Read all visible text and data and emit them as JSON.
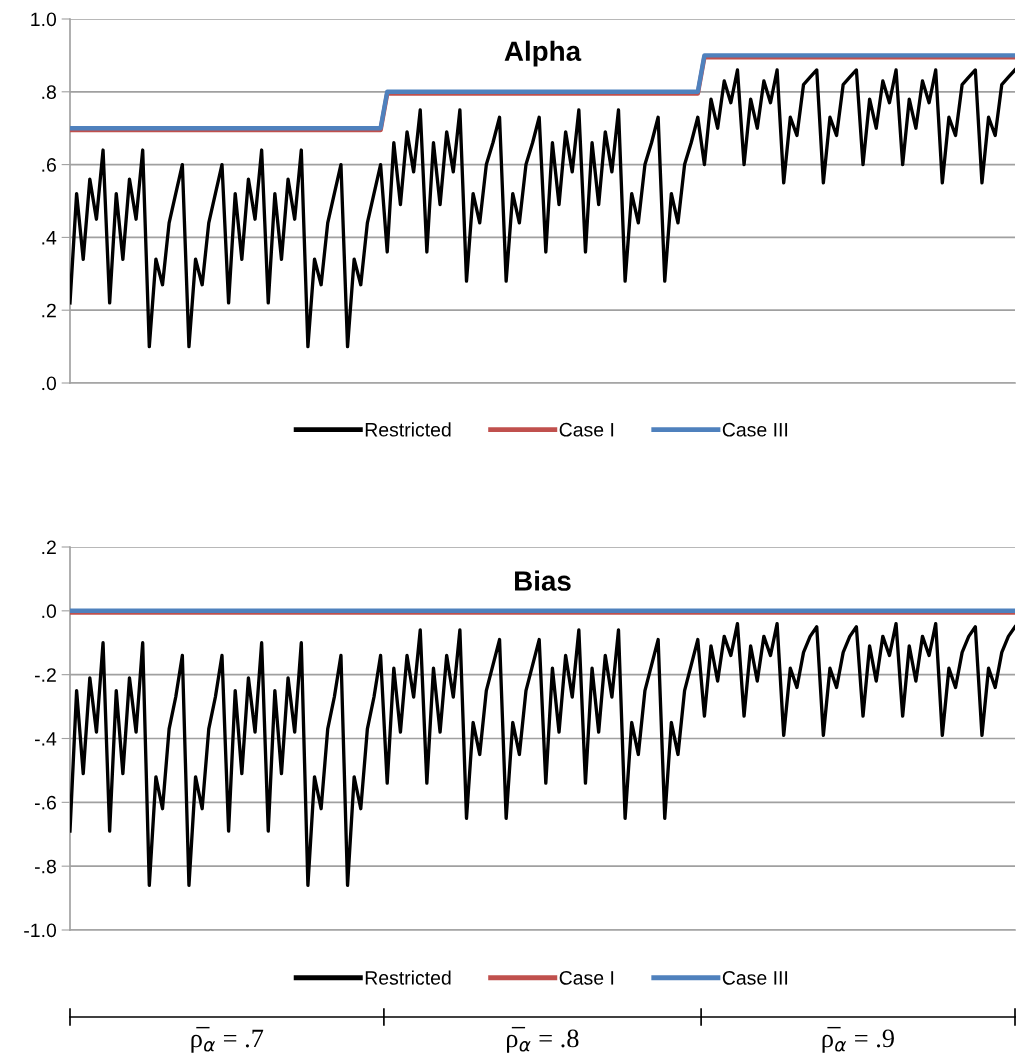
{
  "chart_data": [
    {
      "type": "line",
      "title": "Alpha",
      "categories": [
        null,
        null,
        null,
        null,
        null,
        null,
        null,
        null,
        null,
        null,
        null,
        null,
        null,
        null,
        null,
        null,
        null,
        null,
        null,
        null,
        null,
        null,
        null,
        null,
        null,
        null,
        null,
        null,
        null,
        null,
        null,
        null,
        null,
        null,
        null,
        null,
        null,
        null,
        null,
        null,
        null,
        null,
        null,
        null,
        null,
        null,
        null,
        null,
        null,
        null,
        null,
        null,
        null,
        null,
        null,
        null,
        null,
        null,
        null,
        null,
        null,
        null,
        null,
        null,
        null,
        null,
        null,
        null,
        null,
        null,
        null,
        null,
        null,
        null,
        null,
        null,
        null,
        null,
        null,
        null,
        null,
        null,
        null,
        null,
        null,
        null,
        null,
        null,
        null,
        null,
        null,
        null,
        null,
        null,
        null,
        null,
        null,
        null,
        null,
        null,
        null,
        null,
        null,
        null,
        null,
        null,
        null,
        null,
        null,
        null,
        null,
        null,
        null,
        null,
        null,
        null,
        null,
        null,
        null,
        null,
        null,
        null,
        null,
        null,
        null,
        null,
        null,
        null,
        null,
        null,
        null,
        null,
        null,
        null,
        null,
        null,
        null,
        null,
        null,
        null,
        null,
        null,
        null,
        null
      ],
      "series": [
        {
          "name": "Restricted",
          "color": "#000000",
          "values": [
            0.22,
            0.52,
            0.34,
            0.56,
            0.45,
            0.64,
            0.22,
            0.52,
            0.34,
            0.56,
            0.45,
            0.64,
            0.1,
            0.34,
            0.27,
            0.44,
            0.52,
            0.6,
            0.1,
            0.34,
            0.27,
            0.44,
            0.52,
            0.6,
            0.22,
            0.52,
            0.34,
            0.56,
            0.45,
            0.64,
            0.22,
            0.52,
            0.34,
            0.56,
            0.45,
            0.64,
            0.1,
            0.34,
            0.27,
            0.44,
            0.52,
            0.6,
            0.1,
            0.34,
            0.27,
            0.44,
            0.52,
            0.6,
            0.36,
            0.66,
            0.49,
            0.69,
            0.58,
            0.75,
            0.36,
            0.66,
            0.49,
            0.69,
            0.58,
            0.75,
            0.28,
            0.52,
            0.44,
            0.6,
            0.66,
            0.73,
            0.28,
            0.52,
            0.44,
            0.6,
            0.66,
            0.73,
            0.36,
            0.66,
            0.49,
            0.69,
            0.58,
            0.75,
            0.36,
            0.66,
            0.49,
            0.69,
            0.58,
            0.75,
            0.28,
            0.52,
            0.44,
            0.6,
            0.66,
            0.73,
            0.28,
            0.52,
            0.44,
            0.6,
            0.66,
            0.73,
            0.6,
            0.78,
            0.7,
            0.83,
            0.77,
            0.86,
            0.6,
            0.78,
            0.7,
            0.83,
            0.77,
            0.86,
            0.55,
            0.73,
            0.68,
            0.82,
            0.84,
            0.86,
            0.55,
            0.73,
            0.68,
            0.82,
            0.84,
            0.86,
            0.6,
            0.78,
            0.7,
            0.83,
            0.77,
            0.86,
            0.6,
            0.78,
            0.7,
            0.83,
            0.77,
            0.86,
            0.55,
            0.73,
            0.68,
            0.82,
            0.84,
            0.86,
            0.55,
            0.73,
            0.68,
            0.82,
            0.84,
            0.86
          ]
        },
        {
          "name": "Case I",
          "color": "#c0504d",
          "values": [
            0.695,
            0.695,
            0.695,
            0.695,
            0.695,
            0.695,
            0.695,
            0.695,
            0.695,
            0.695,
            0.695,
            0.695,
            0.695,
            0.695,
            0.695,
            0.695,
            0.695,
            0.695,
            0.695,
            0.695,
            0.695,
            0.695,
            0.695,
            0.695,
            0.695,
            0.695,
            0.695,
            0.695,
            0.695,
            0.695,
            0.695,
            0.695,
            0.695,
            0.695,
            0.695,
            0.695,
            0.695,
            0.695,
            0.695,
            0.695,
            0.695,
            0.695,
            0.695,
            0.695,
            0.695,
            0.695,
            0.695,
            0.695,
            0.795,
            0.795,
            0.795,
            0.795,
            0.795,
            0.795,
            0.795,
            0.795,
            0.795,
            0.795,
            0.795,
            0.795,
            0.795,
            0.795,
            0.795,
            0.795,
            0.795,
            0.795,
            0.795,
            0.795,
            0.795,
            0.795,
            0.795,
            0.795,
            0.795,
            0.795,
            0.795,
            0.795,
            0.795,
            0.795,
            0.795,
            0.795,
            0.795,
            0.795,
            0.795,
            0.795,
            0.795,
            0.795,
            0.795,
            0.795,
            0.795,
            0.795,
            0.795,
            0.795,
            0.795,
            0.795,
            0.795,
            0.795,
            0.895,
            0.895,
            0.895,
            0.895,
            0.895,
            0.895,
            0.895,
            0.895,
            0.895,
            0.895,
            0.895,
            0.895,
            0.895,
            0.895,
            0.895,
            0.895,
            0.895,
            0.895,
            0.895,
            0.895,
            0.895,
            0.895,
            0.895,
            0.895,
            0.895,
            0.895,
            0.895,
            0.895,
            0.895,
            0.895,
            0.895,
            0.895,
            0.895,
            0.895,
            0.895,
            0.895,
            0.895,
            0.895,
            0.895,
            0.895,
            0.895,
            0.895,
            0.895,
            0.895,
            0.895,
            0.895,
            0.895,
            0.895
          ]
        },
        {
          "name": "Case III",
          "color": "#4f81bd",
          "values": [
            0.7,
            0.7,
            0.7,
            0.7,
            0.7,
            0.7,
            0.7,
            0.7,
            0.7,
            0.7,
            0.7,
            0.7,
            0.7,
            0.7,
            0.7,
            0.7,
            0.7,
            0.7,
            0.7,
            0.7,
            0.7,
            0.7,
            0.7,
            0.7,
            0.7,
            0.7,
            0.7,
            0.7,
            0.7,
            0.7,
            0.7,
            0.7,
            0.7,
            0.7,
            0.7,
            0.7,
            0.7,
            0.7,
            0.7,
            0.7,
            0.7,
            0.7,
            0.7,
            0.7,
            0.7,
            0.7,
            0.7,
            0.7,
            0.8,
            0.8,
            0.8,
            0.8,
            0.8,
            0.8,
            0.8,
            0.8,
            0.8,
            0.8,
            0.8,
            0.8,
            0.8,
            0.8,
            0.8,
            0.8,
            0.8,
            0.8,
            0.8,
            0.8,
            0.8,
            0.8,
            0.8,
            0.8,
            0.8,
            0.8,
            0.8,
            0.8,
            0.8,
            0.8,
            0.8,
            0.8,
            0.8,
            0.8,
            0.8,
            0.8,
            0.8,
            0.8,
            0.8,
            0.8,
            0.8,
            0.8,
            0.8,
            0.8,
            0.8,
            0.8,
            0.8,
            0.8,
            0.9,
            0.9,
            0.9,
            0.9,
            0.9,
            0.9,
            0.9,
            0.9,
            0.9,
            0.9,
            0.9,
            0.9,
            0.9,
            0.9,
            0.9,
            0.9,
            0.9,
            0.9,
            0.9,
            0.9,
            0.9,
            0.9,
            0.9,
            0.9,
            0.9,
            0.9,
            0.9,
            0.9,
            0.9,
            0.9,
            0.9,
            0.9,
            0.9,
            0.9,
            0.9,
            0.9,
            0.9,
            0.9,
            0.9,
            0.9,
            0.9,
            0.9,
            0.9,
            0.9,
            0.9,
            0.9,
            0.9,
            0.9
          ]
        }
      ],
      "ylim": [
        0,
        1.0
      ],
      "yticks": [
        {
          "value": 0,
          "label": ".0"
        },
        {
          "value": 0.2,
          "label": ".2"
        },
        {
          "value": 0.4,
          "label": ".4"
        },
        {
          "value": 0.6,
          "label": ".6"
        },
        {
          "value": 0.8,
          "label": ".8"
        },
        {
          "value": 1.0,
          "label": "1.0"
        }
      ],
      "grid": "y",
      "legend": "bottom",
      "tick_labels": "y",
      "line_style": "solid"
    },
    {
      "type": "line",
      "title": "Bias",
      "categories": [
        null,
        null,
        null,
        null,
        null,
        null,
        null,
        null,
        null,
        null,
        null,
        null,
        null,
        null,
        null,
        null,
        null,
        null,
        null,
        null,
        null,
        null,
        null,
        null,
        null,
        null,
        null,
        null,
        null,
        null,
        null,
        null,
        null,
        null,
        null,
        null,
        null,
        null,
        null,
        null,
        null,
        null,
        null,
        null,
        null,
        null,
        null,
        null,
        null,
        null,
        null,
        null,
        null,
        null,
        null,
        null,
        null,
        null,
        null,
        null,
        null,
        null,
        null,
        null,
        null,
        null,
        null,
        null,
        null,
        null,
        null,
        null,
        null,
        null,
        null,
        null,
        null,
        null,
        null,
        null,
        null,
        null,
        null,
        null,
        null,
        null,
        null,
        null,
        null,
        null,
        null,
        null,
        null,
        null,
        null,
        null,
        null,
        null,
        null,
        null,
        null,
        null,
        null,
        null,
        null,
        null,
        null,
        null,
        null,
        null,
        null,
        null,
        null,
        null,
        null,
        null,
        null,
        null,
        null,
        null,
        null,
        null,
        null,
        null,
        null,
        null,
        null,
        null,
        null,
        null,
        null,
        null,
        null,
        null,
        null,
        null,
        null,
        null,
        null,
        null,
        null,
        null,
        null,
        null
      ],
      "series": [
        {
          "name": "Restricted",
          "color": "#000000",
          "values": [
            -0.69,
            -0.25,
            -0.51,
            -0.21,
            -0.38,
            -0.1,
            -0.69,
            -0.25,
            -0.51,
            -0.21,
            -0.38,
            -0.1,
            -0.86,
            -0.52,
            -0.62,
            -0.37,
            -0.27,
            -0.14,
            -0.86,
            -0.52,
            -0.62,
            -0.37,
            -0.27,
            -0.14,
            -0.69,
            -0.25,
            -0.51,
            -0.21,
            -0.38,
            -0.1,
            -0.69,
            -0.25,
            -0.51,
            -0.21,
            -0.38,
            -0.1,
            -0.86,
            -0.52,
            -0.62,
            -0.37,
            -0.27,
            -0.14,
            -0.86,
            -0.52,
            -0.62,
            -0.37,
            -0.27,
            -0.14,
            -0.54,
            -0.18,
            -0.38,
            -0.14,
            -0.27,
            -0.06,
            -0.54,
            -0.18,
            -0.38,
            -0.14,
            -0.27,
            -0.06,
            -0.65,
            -0.35,
            -0.45,
            -0.25,
            -0.17,
            -0.09,
            -0.65,
            -0.35,
            -0.45,
            -0.25,
            -0.17,
            -0.09,
            -0.54,
            -0.18,
            -0.38,
            -0.14,
            -0.27,
            -0.06,
            -0.54,
            -0.18,
            -0.38,
            -0.14,
            -0.27,
            -0.06,
            -0.65,
            -0.35,
            -0.45,
            -0.25,
            -0.17,
            -0.09,
            -0.65,
            -0.35,
            -0.45,
            -0.25,
            -0.17,
            -0.09,
            -0.33,
            -0.11,
            -0.22,
            -0.08,
            -0.14,
            -0.04,
            -0.33,
            -0.11,
            -0.22,
            -0.08,
            -0.14,
            -0.04,
            -0.39,
            -0.18,
            -0.24,
            -0.13,
            -0.08,
            -0.05,
            -0.39,
            -0.18,
            -0.24,
            -0.13,
            -0.08,
            -0.05,
            -0.33,
            -0.11,
            -0.22,
            -0.08,
            -0.14,
            -0.04,
            -0.33,
            -0.11,
            -0.22,
            -0.08,
            -0.14,
            -0.04,
            -0.39,
            -0.18,
            -0.24,
            -0.13,
            -0.08,
            -0.05,
            -0.39,
            -0.18,
            -0.24,
            -0.13,
            -0.08,
            -0.05
          ]
        },
        {
          "name": "Case I",
          "color": "#c0504d",
          "values": [
            -0.005,
            -0.005,
            -0.005,
            -0.005,
            -0.005,
            -0.005,
            -0.005,
            -0.005,
            -0.005,
            -0.005,
            -0.005,
            -0.005,
            -0.005,
            -0.005,
            -0.005,
            -0.005,
            -0.005,
            -0.005,
            -0.005,
            -0.005,
            -0.005,
            -0.005,
            -0.005,
            -0.005,
            -0.005,
            -0.005,
            -0.005,
            -0.005,
            -0.005,
            -0.005,
            -0.005,
            -0.005,
            -0.005,
            -0.005,
            -0.005,
            -0.005,
            -0.005,
            -0.005,
            -0.005,
            -0.005,
            -0.005,
            -0.005,
            -0.005,
            -0.005,
            -0.005,
            -0.005,
            -0.005,
            -0.005,
            -0.005,
            -0.005,
            -0.005,
            -0.005,
            -0.005,
            -0.005,
            -0.005,
            -0.005,
            -0.005,
            -0.005,
            -0.005,
            -0.005,
            -0.005,
            -0.005,
            -0.005,
            -0.005,
            -0.005,
            -0.005,
            -0.005,
            -0.005,
            -0.005,
            -0.005,
            -0.005,
            -0.005,
            -0.005,
            -0.005,
            -0.005,
            -0.005,
            -0.005,
            -0.005,
            -0.005,
            -0.005,
            -0.005,
            -0.005,
            -0.005,
            -0.005,
            -0.005,
            -0.005,
            -0.005,
            -0.005,
            -0.005,
            -0.005,
            -0.005,
            -0.005,
            -0.005,
            -0.005,
            -0.005,
            -0.005,
            -0.005,
            -0.005,
            -0.005,
            -0.005,
            -0.005,
            -0.005,
            -0.005,
            -0.005,
            -0.005,
            -0.005,
            -0.005,
            -0.005,
            -0.005,
            -0.005,
            -0.005,
            -0.005,
            -0.005,
            -0.005,
            -0.005,
            -0.005,
            -0.005,
            -0.005,
            -0.005,
            -0.005,
            -0.005,
            -0.005,
            -0.005,
            -0.005,
            -0.005,
            -0.005,
            -0.005,
            -0.005,
            -0.005,
            -0.005,
            -0.005,
            -0.005,
            -0.005,
            -0.005,
            -0.005,
            -0.005,
            -0.005,
            -0.005,
            -0.005,
            -0.005,
            -0.005,
            -0.005,
            -0.005,
            -0.005
          ]
        },
        {
          "name": "Case III",
          "color": "#4f81bd",
          "values": [
            0,
            0,
            0,
            0,
            0,
            0,
            0,
            0,
            0,
            0,
            0,
            0,
            0,
            0,
            0,
            0,
            0,
            0,
            0,
            0,
            0,
            0,
            0,
            0,
            0,
            0,
            0,
            0,
            0,
            0,
            0,
            0,
            0,
            0,
            0,
            0,
            0,
            0,
            0,
            0,
            0,
            0,
            0,
            0,
            0,
            0,
            0,
            0,
            0,
            0,
            0,
            0,
            0,
            0,
            0,
            0,
            0,
            0,
            0,
            0,
            0,
            0,
            0,
            0,
            0,
            0,
            0,
            0,
            0,
            0,
            0,
            0,
            0,
            0,
            0,
            0,
            0,
            0,
            0,
            0,
            0,
            0,
            0,
            0,
            0,
            0,
            0,
            0,
            0,
            0,
            0,
            0,
            0,
            0,
            0,
            0,
            0,
            0,
            0,
            0,
            0,
            0,
            0,
            0,
            0,
            0,
            0,
            0,
            0,
            0,
            0,
            0,
            0,
            0,
            0,
            0,
            0,
            0,
            0,
            0,
            0,
            0,
            0,
            0,
            0,
            0,
            0,
            0,
            0,
            0,
            0,
            0,
            0,
            0,
            0,
            0,
            0,
            0,
            0,
            0,
            0,
            0,
            0,
            0
          ]
        }
      ],
      "ylim": [
        -1.0,
        0.2
      ],
      "yticks": [
        {
          "value": -1.0,
          "label": "-1.0"
        },
        {
          "value": -0.8,
          "label": "-.8"
        },
        {
          "value": -0.6,
          "label": "-.6"
        },
        {
          "value": -0.4,
          "label": "-.4"
        },
        {
          "value": -0.2,
          "label": "-.2"
        },
        {
          "value": 0,
          "label": ".0"
        },
        {
          "value": 0.2,
          "label": ".2"
        }
      ],
      "grid": "y",
      "legend": "bottom",
      "tick_labels": "y",
      "line_style": "solid",
      "annotations": [
        "ρ̅$_{α}$ = .7",
        "ρ̅$_{α}$ = .8",
        "ρ̅$_{α}$ = .9"
      ]
    }
  ]
}
